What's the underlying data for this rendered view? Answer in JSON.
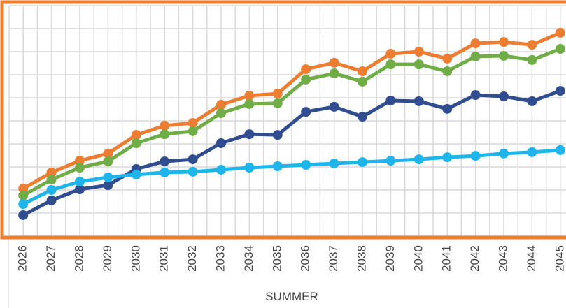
{
  "chart_data": {
    "type": "line",
    "x_label": "SUMMER",
    "categories": [
      "2026",
      "2027",
      "2028",
      "2029",
      "2030",
      "2031",
      "2032",
      "2033",
      "2034",
      "2035",
      "2036",
      "2037",
      "2038",
      "2039",
      "2040",
      "2041",
      "2042",
      "2043",
      "2044",
      "2045"
    ],
    "ylim": [
      0,
      10
    ],
    "yticks": [
      0,
      1,
      2,
      3,
      4,
      5,
      6,
      7,
      8,
      9,
      10
    ],
    "grid": true,
    "series": [
      {
        "color": "#ed7d31",
        "values": [
          2.06,
          2.76,
          3.27,
          3.58,
          4.39,
          4.79,
          4.91,
          5.7,
          6.09,
          6.18,
          7.24,
          7.52,
          7.15,
          7.91,
          8.0,
          7.7,
          8.36,
          8.42,
          8.3,
          8.82
        ]
      },
      {
        "color": "#70ad47",
        "values": [
          1.76,
          2.45,
          2.97,
          3.24,
          4.03,
          4.42,
          4.55,
          5.33,
          5.73,
          5.76,
          6.79,
          7.06,
          6.7,
          7.45,
          7.45,
          7.15,
          7.79,
          7.82,
          7.64,
          8.12
        ]
      },
      {
        "color": "#2f4d8f",
        "values": [
          0.91,
          1.55,
          2.03,
          2.21,
          2.91,
          3.24,
          3.33,
          4.03,
          4.42,
          4.39,
          5.39,
          5.61,
          5.18,
          5.88,
          5.85,
          5.52,
          6.12,
          6.06,
          5.85,
          6.3
        ]
      },
      {
        "color": "#1fb4ea",
        "values": [
          1.39,
          2.0,
          2.36,
          2.55,
          2.67,
          2.76,
          2.79,
          2.88,
          2.97,
          3.03,
          3.09,
          3.15,
          3.21,
          3.27,
          3.33,
          3.42,
          3.48,
          3.58,
          3.64,
          3.73
        ]
      }
    ]
  }
}
